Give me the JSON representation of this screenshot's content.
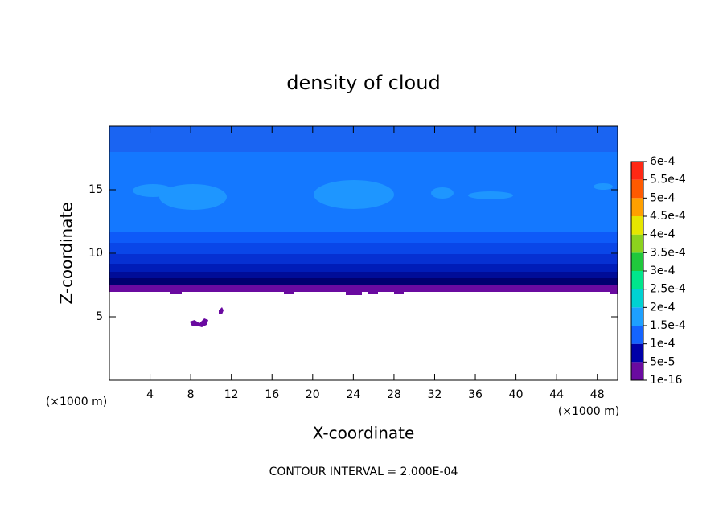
{
  "chart_data": {
    "type": "contour",
    "title": "density of cloud",
    "x_label": "X-coordinate",
    "y_label": "Z-coordinate",
    "x_unit": "(×1000 m)",
    "y_unit": "(×1000 m)",
    "footer": "CONTOUR INTERVAL = 2.000E-04",
    "xlim": [
      0,
      50
    ],
    "xticks": [
      4,
      8,
      12,
      16,
      20,
      24,
      28,
      32,
      36,
      40,
      44,
      48
    ],
    "ylim": [
      0,
      20
    ],
    "yticks": [
      5,
      10,
      15
    ],
    "colorbar": {
      "clim": [
        1e-16,
        0.0006
      ],
      "ticks": [
        {
          "value": 1e-16,
          "label": "1e-16"
        },
        {
          "value": 5e-05,
          "label": "5e-5"
        },
        {
          "value": 0.0001,
          "label": "1e-4"
        },
        {
          "value": 0.00015,
          "label": "1.5e-4"
        },
        {
          "value": 0.0002,
          "label": "2e-4"
        },
        {
          "value": 0.00025,
          "label": "2.5e-4"
        },
        {
          "value": 0.0003,
          "label": "3e-4"
        },
        {
          "value": 0.00035,
          "label": "3.5e-4"
        },
        {
          "value": 0.0004,
          "label": "4e-4"
        },
        {
          "value": 0.00045,
          "label": "4.5e-4"
        },
        {
          "value": 0.0005,
          "label": "5e-4"
        },
        {
          "value": 0.00055,
          "label": "5.5e-4"
        },
        {
          "value": 0.0006,
          "label": "6e-4"
        }
      ],
      "colors": [
        "#6a0aa0",
        "#0000a8",
        "#1464ff",
        "#1ea0ff",
        "#00d2d2",
        "#00e68c",
        "#20c83c",
        "#8cd21e",
        "#e6e600",
        "#ffa000",
        "#ff5a00",
        "#ff2814",
        "#ff8080"
      ]
    }
  }
}
